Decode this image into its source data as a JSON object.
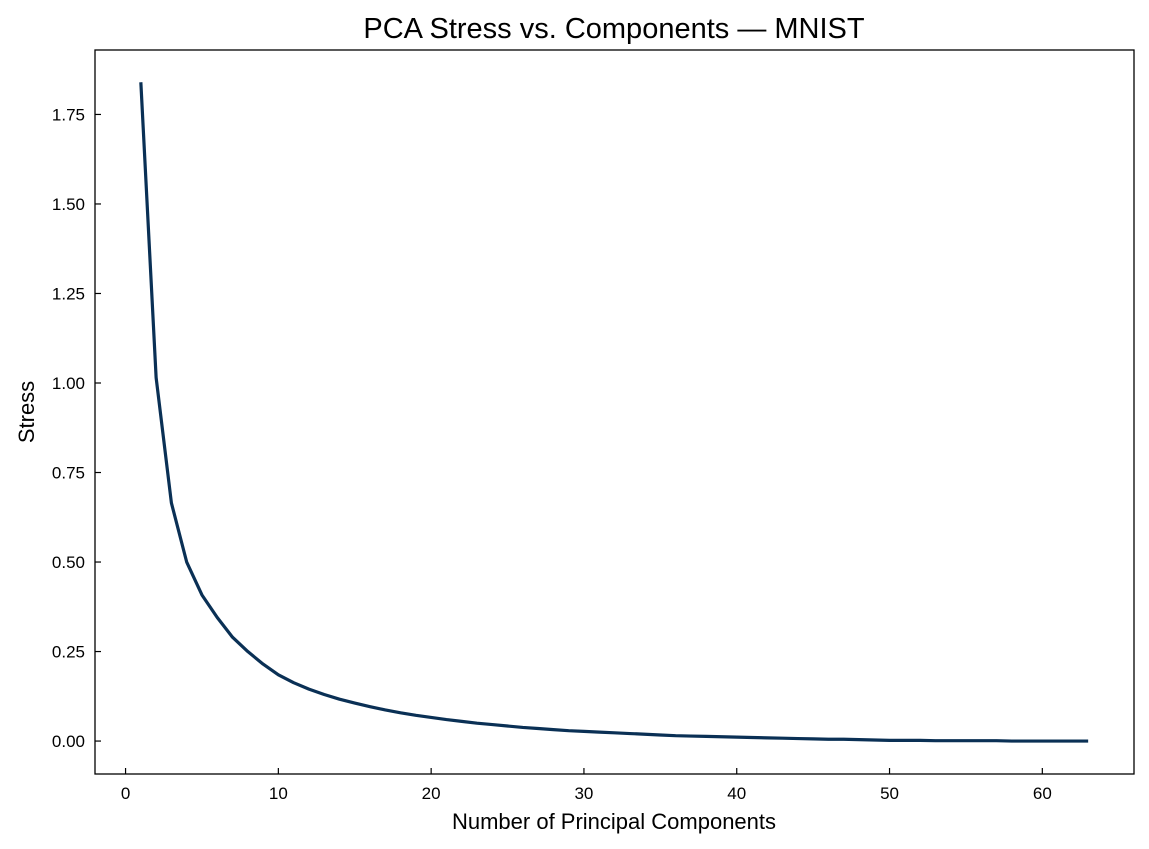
{
  "chart_data": {
    "type": "line",
    "title": "PCA Stress vs. Components — MNIST",
    "xlabel": "Number of Principal Components",
    "ylabel": "Stress",
    "xlim": [
      -2,
      66
    ],
    "ylim": [
      -0.092,
      1.93
    ],
    "xticks": [
      0,
      10,
      20,
      30,
      40,
      50,
      60
    ],
    "xtick_labels": [
      "0",
      "10",
      "20",
      "30",
      "40",
      "50",
      "60"
    ],
    "yticks": [
      0.0,
      0.25,
      0.5,
      0.75,
      1.0,
      1.25,
      1.5,
      1.75
    ],
    "ytick_labels": [
      "0.00",
      "0.25",
      "0.50",
      "0.75",
      "1.00",
      "1.25",
      "1.50",
      "1.75"
    ],
    "grid": false,
    "line_color": "#0a3055",
    "series": [
      {
        "x": [
          1,
          2,
          3,
          4,
          5,
          6,
          7,
          8,
          9,
          10,
          11,
          12,
          13,
          14,
          15,
          16,
          17,
          18,
          19,
          20,
          21,
          22,
          23,
          24,
          25,
          26,
          27,
          28,
          29,
          30,
          31,
          32,
          33,
          34,
          35,
          36,
          37,
          38,
          39,
          40,
          41,
          42,
          43,
          44,
          45,
          46,
          47,
          48,
          49,
          50,
          51,
          52,
          53,
          54,
          55,
          56,
          57,
          58,
          59,
          60,
          61,
          62,
          63
        ],
        "values": [
          1.84,
          1.015,
          0.665,
          0.5,
          0.408,
          0.345,
          0.29,
          0.25,
          0.215,
          0.185,
          0.163,
          0.145,
          0.13,
          0.117,
          0.106,
          0.096,
          0.087,
          0.079,
          0.072,
          0.066,
          0.06,
          0.055,
          0.05,
          0.046,
          0.042,
          0.038,
          0.035,
          0.032,
          0.029,
          0.027,
          0.025,
          0.023,
          0.021,
          0.019,
          0.017,
          0.015,
          0.014,
          0.013,
          0.012,
          0.011,
          0.01,
          0.009,
          0.008,
          0.007,
          0.006,
          0.005,
          0.005,
          0.004,
          0.003,
          0.002,
          0.002,
          0.002,
          0.001,
          0.001,
          0.001,
          0.001,
          0.001,
          0.0,
          0.0,
          0.0,
          0.0,
          0.0,
          0.0
        ]
      }
    ]
  }
}
